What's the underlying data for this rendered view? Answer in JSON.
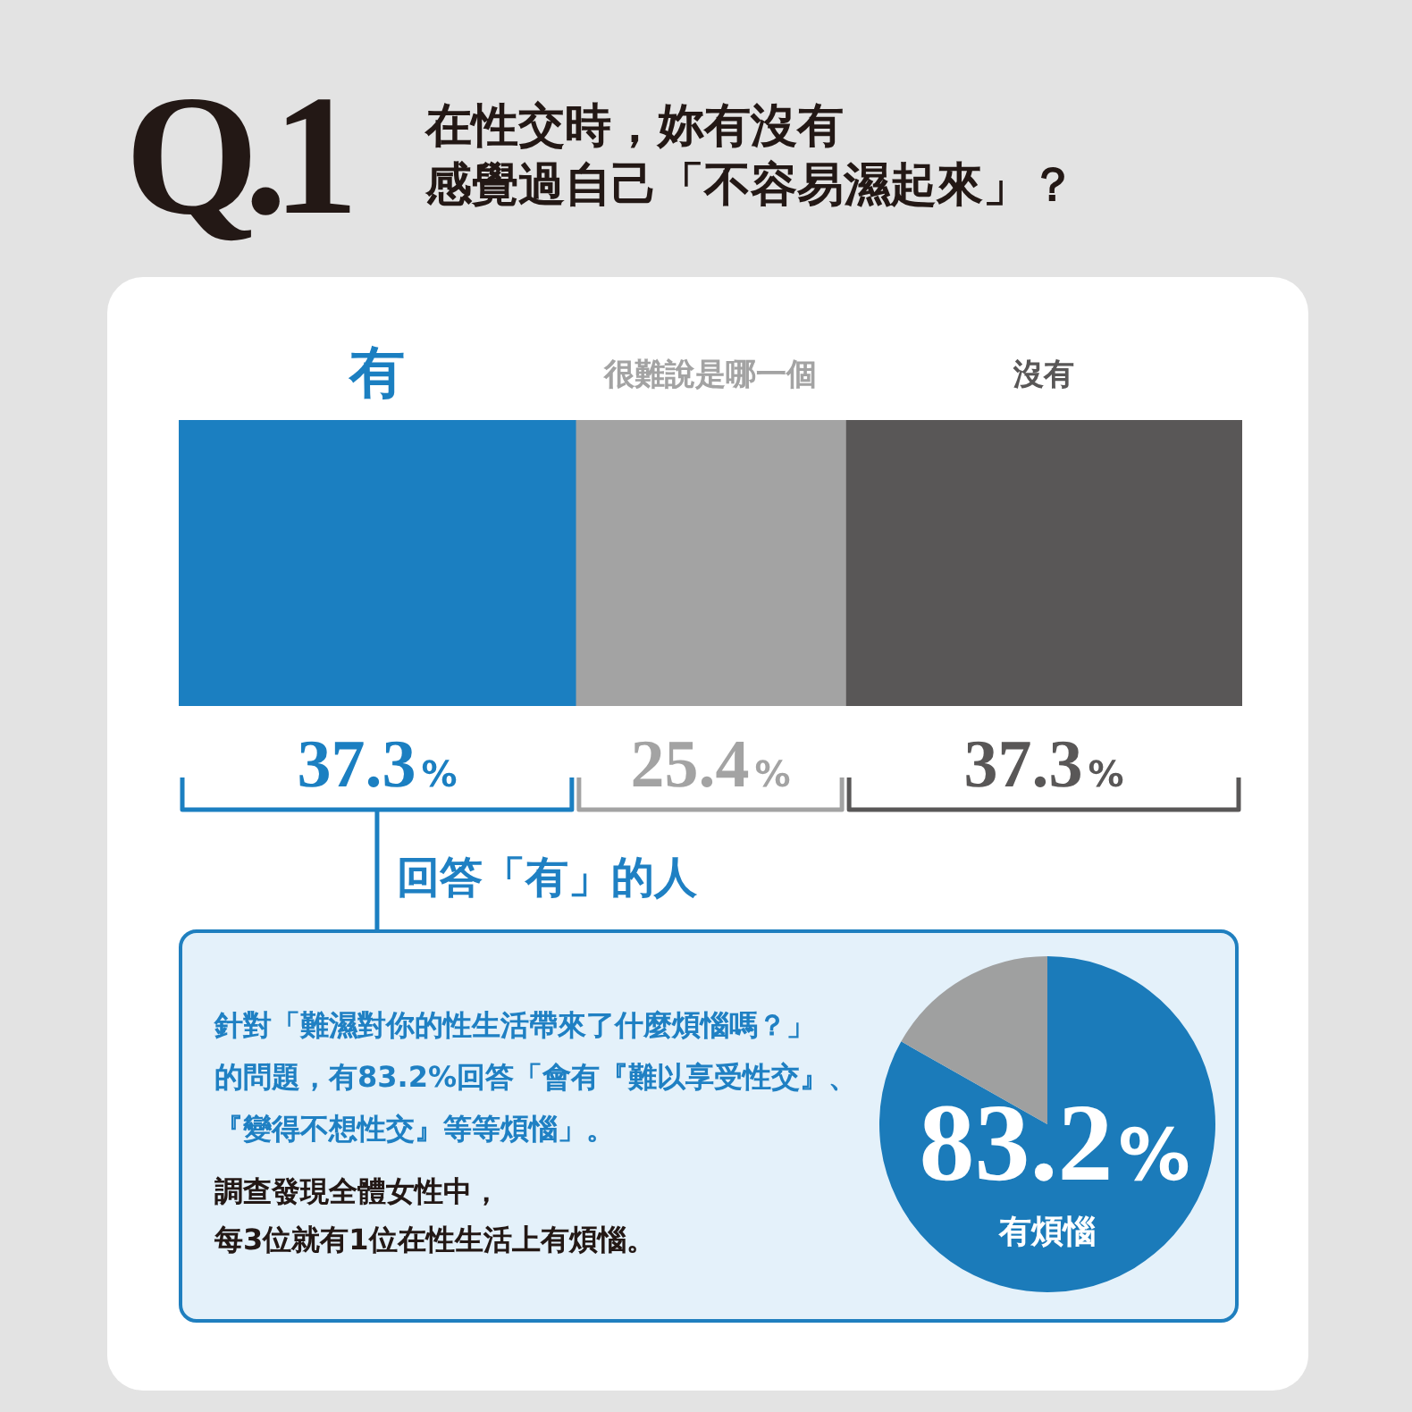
{
  "chart_data": [
    {
      "type": "bar",
      "title": "Q.1",
      "subtitle": "在性交時，妳有沒有感覺過自己「不容易濕起來」？",
      "orientation": "horizontal",
      "stacked": true,
      "tick_labels": false,
      "categories": [
        null
      ],
      "series": [
        {
          "name": "有",
          "color": "#1b7fc1",
          "values": [
            37.3
          ],
          "value_labels": [
            "37.3%"
          ]
        },
        {
          "name": "很難說是哪一個",
          "color": "#a3a3a3",
          "values": [
            25.4
          ],
          "value_labels": [
            "25.4%"
          ]
        },
        {
          "name": "沒有",
          "color": "#595757",
          "values": [
            37.3
          ],
          "value_labels": [
            "37.3%"
          ]
        }
      ]
    },
    {
      "type": "pie",
      "title": "回答「有」的人",
      "categories": [
        "有煩惱",
        null
      ],
      "values": [
        83.2,
        16.8
      ],
      "colors": [
        "#1b7bba",
        "#9fa0a0"
      ],
      "value_labels": [
        "83.2%",
        null
      ],
      "annotations": [
        "針對「難濕對你的性生活帶來了什麼煩惱嗎？」的問題，有83.2%回答「會有『難以享受性交』、『變得不想性交』等等煩惱」。",
        "調查發現全體女性中，每3位就有1位在性生活上有煩惱。"
      ]
    }
  ]
}
